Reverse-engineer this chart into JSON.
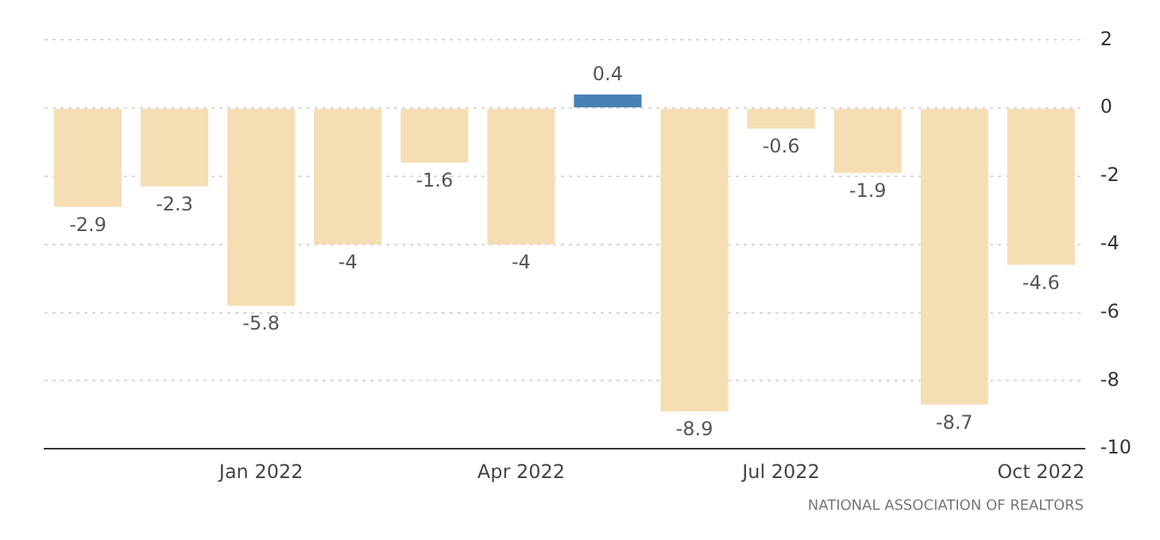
{
  "chart_data": {
    "type": "bar",
    "categories": [
      null,
      null,
      "Jan 2022",
      null,
      null,
      "Apr 2022",
      null,
      null,
      "Jul 2022",
      null,
      null,
      "Oct 2022"
    ],
    "values": [
      -2.9,
      -2.3,
      -5.8,
      -4,
      -1.6,
      -4,
      0.4,
      -8.9,
      -0.6,
      -1.9,
      -8.7,
      -4.6
    ],
    "colors": [
      "#f5deb3",
      "#f5deb3",
      "#f5deb3",
      "#f5deb3",
      "#f5deb3",
      "#f5deb3",
      "#4682b4",
      "#f5deb3",
      "#f5deb3",
      "#f5deb3",
      "#f5deb3",
      "#f5deb3"
    ],
    "ylim": [
      -10,
      2
    ],
    "yticks": [
      -10,
      -8,
      -6,
      -4,
      -2,
      0,
      2
    ],
    "grid": "y",
    "data_labels": true,
    "annotations": [
      "NATIONAL ASSOCIATION OF REALTORS"
    ]
  }
}
